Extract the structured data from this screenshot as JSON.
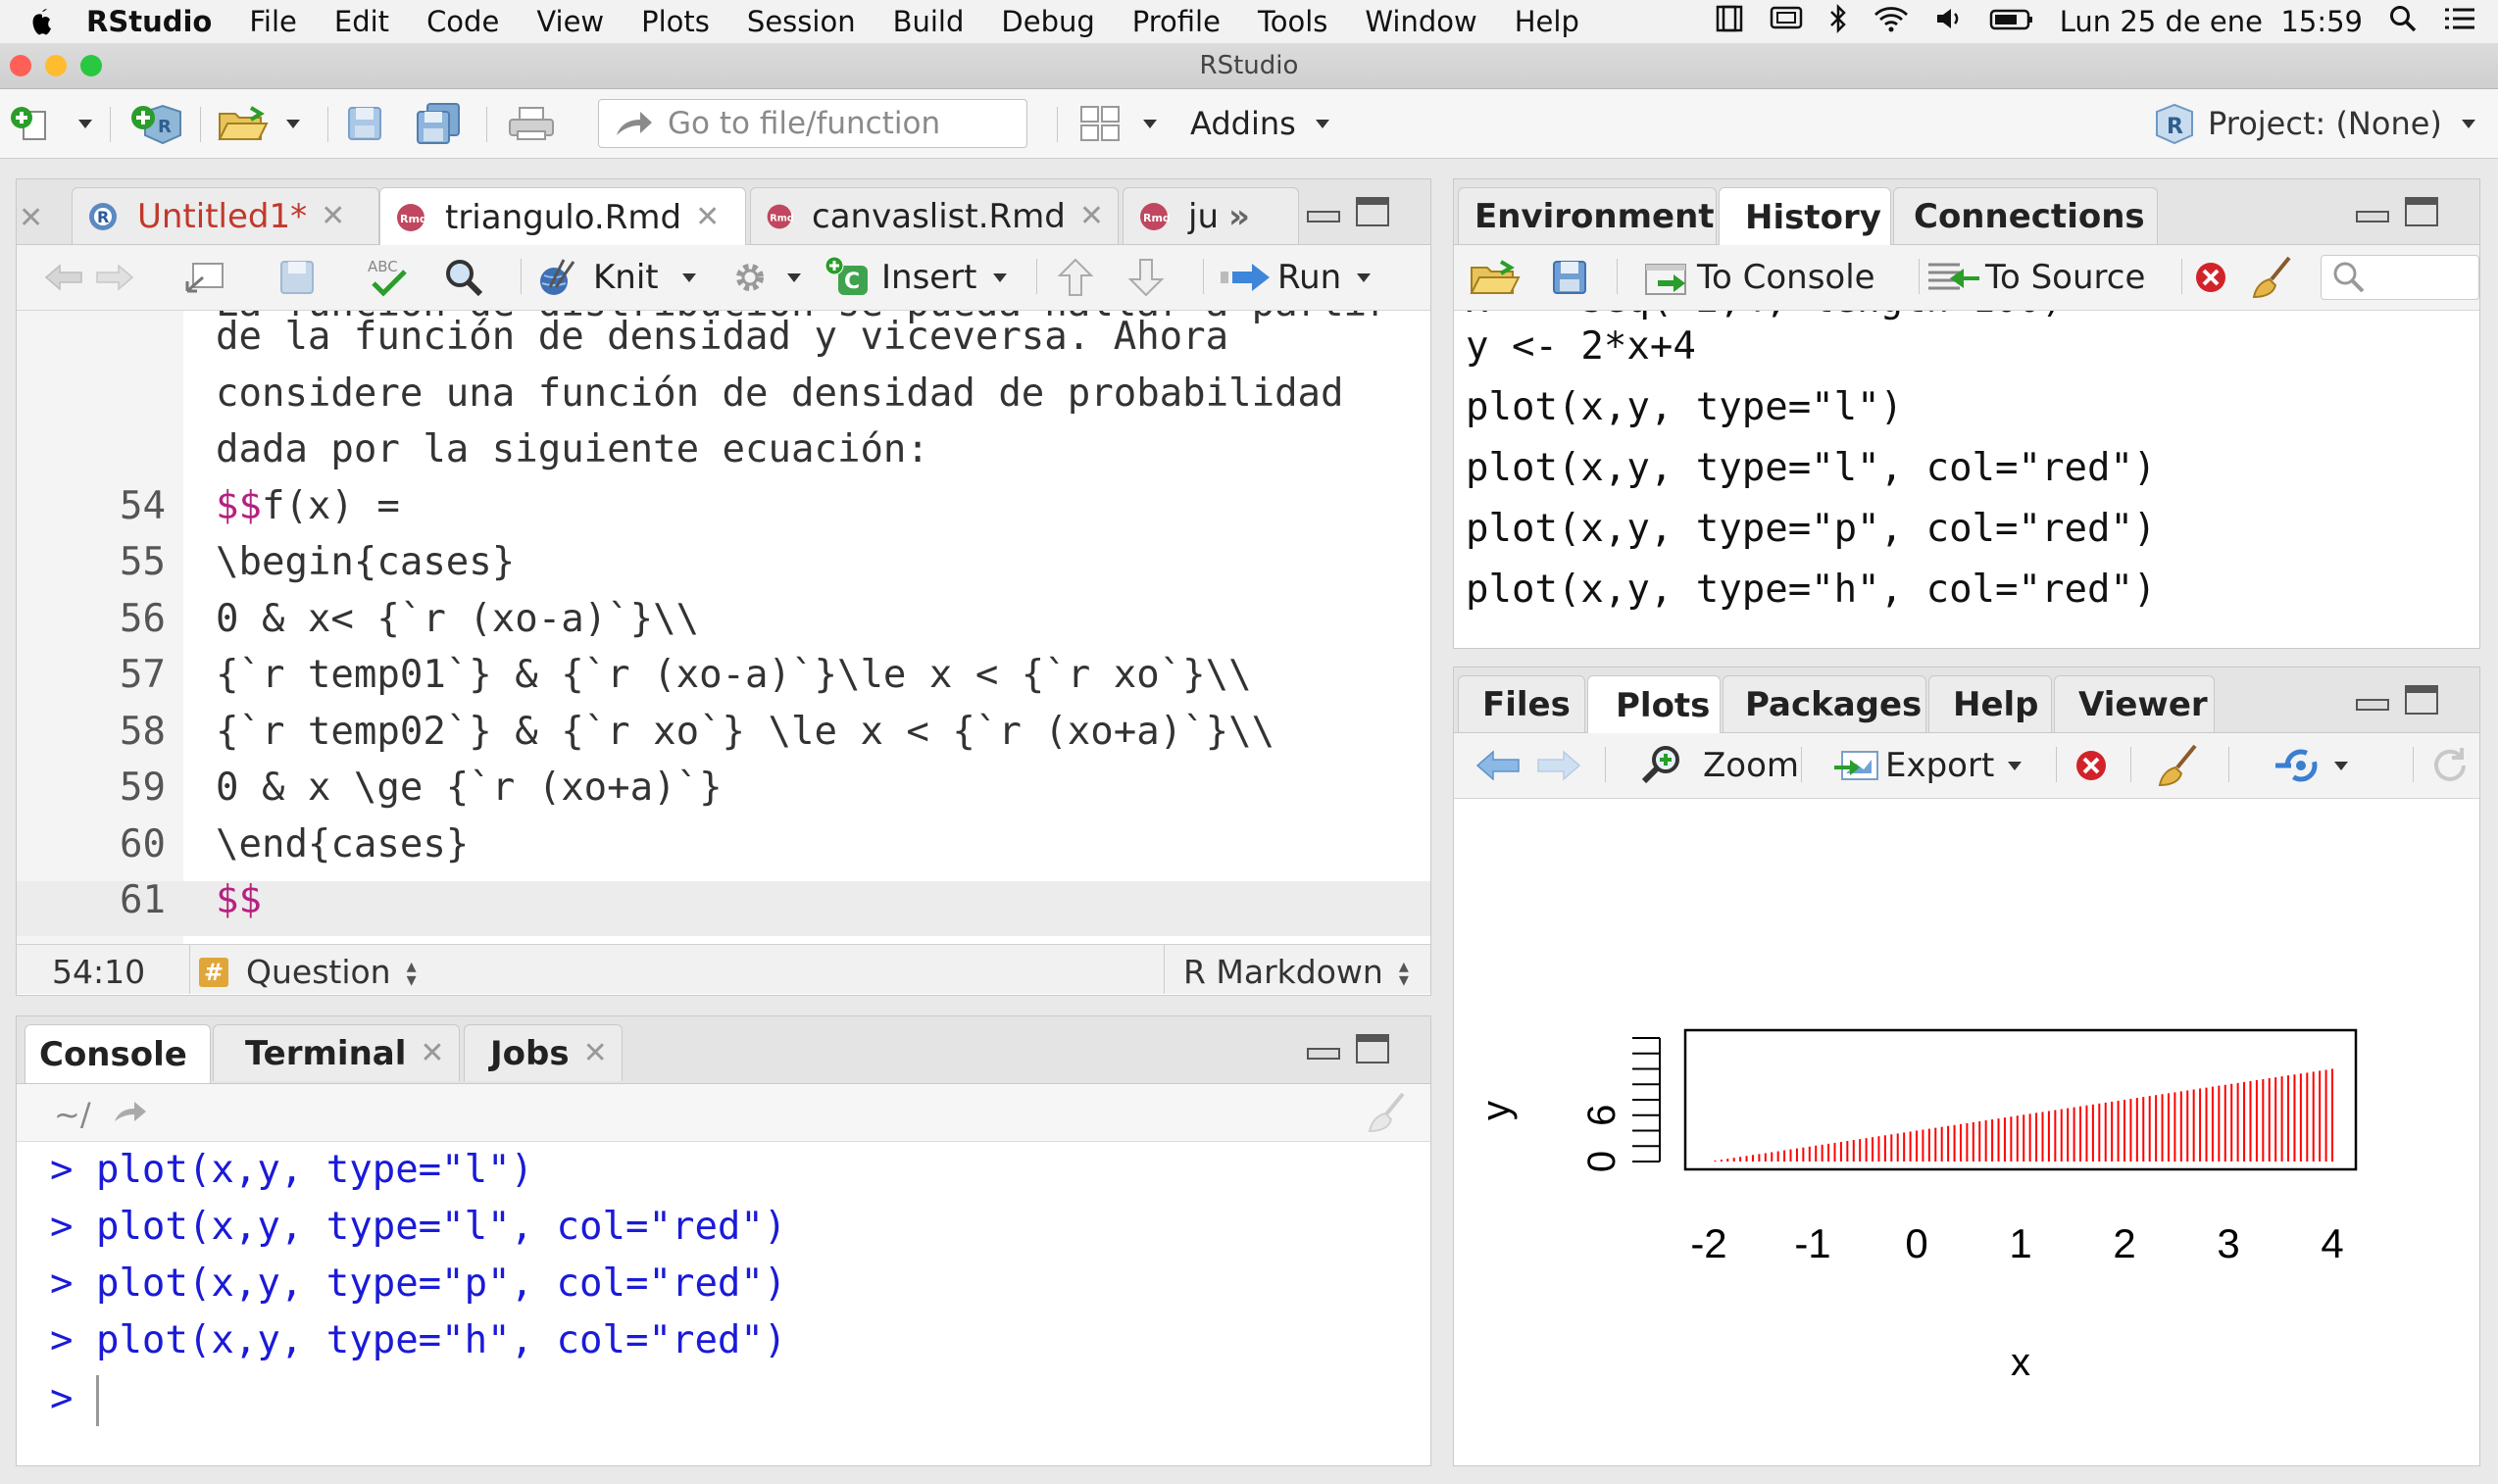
{
  "menubar": {
    "app": "RStudio",
    "items": [
      "File",
      "Edit",
      "Code",
      "View",
      "Plots",
      "Session",
      "Build",
      "Debug",
      "Profile",
      "Tools",
      "Window",
      "Help"
    ],
    "clock": "Lun 25 de ene  15:59"
  },
  "window": {
    "title": "RStudio"
  },
  "toolbar": {
    "goto_placeholder": "Go to file/function",
    "addins": "Addins",
    "project": "Project: (None)"
  },
  "editor": {
    "tabs": [
      {
        "label": "Untitled1*",
        "modified": true
      },
      {
        "label": "triangulo.Rmd"
      },
      {
        "label": "canvaslist.Rmd"
      },
      {
        "label": "ju"
      }
    ],
    "knit": "Knit",
    "insert": "Insert",
    "run": "Run",
    "lines": [
      {
        "num": "",
        "text": "de la función de densidad y viceversa. Ahora"
      },
      {
        "num": "",
        "text": "considere una función de densidad de probabilidad"
      },
      {
        "num": "",
        "text": "dada por la siguiente ecuación:"
      },
      {
        "num": "54",
        "pre": "$$",
        "text": "f(x) ="
      },
      {
        "num": "55",
        "text": "\\begin{cases}"
      },
      {
        "num": "56",
        "text": "0 & x< {`r (xo-a)`}\\\\"
      },
      {
        "num": "57",
        "text": "{`r temp01`} & {`r (xo-a)`}\\le x < {`r xo`}\\\\"
      },
      {
        "num": "58",
        "text": "{`r temp02`} & {`r xo`} \\le x < {`r (xo+a)`}\\\\"
      },
      {
        "num": "59",
        "text": "0 & x \\ge {`r (xo+a)`}"
      },
      {
        "num": "60",
        "text": "\\end{cases}"
      },
      {
        "num": "61",
        "pre": "$$",
        "text": ""
      }
    ],
    "status": {
      "position": "54:10",
      "section": "Question",
      "mode": "R Markdown"
    }
  },
  "console": {
    "tabs": [
      "Console",
      "Terminal",
      "Jobs"
    ],
    "path": "~/",
    "lines": [
      "> plot(x,y, type=\"l\")",
      "> plot(x,y, type=\"l\", col=\"red\")",
      "> plot(x,y, type=\"p\", col=\"red\")",
      "> plot(x,y, type=\"h\", col=\"red\")"
    ],
    "prompt": ">"
  },
  "envpane": {
    "tabs": [
      "Environment",
      "History",
      "Connections"
    ],
    "to_console": "To Console",
    "to_source": "To Source",
    "history": [
      "y <- 2*x+4",
      "plot(x,y, type=\"l\")",
      "plot(x,y, type=\"l\", col=\"red\")",
      "plot(x,y, type=\"p\", col=\"red\")",
      "plot(x,y, type=\"h\", col=\"red\")"
    ]
  },
  "filespane": {
    "tabs": [
      "Files",
      "Plots",
      "Packages",
      "Help",
      "Viewer"
    ],
    "zoom": "Zoom",
    "export": "Export"
  },
  "chart_data": {
    "type": "bar",
    "plot_type": "h",
    "series_color": "#ff0000",
    "x_from": -2,
    "x_to": 4,
    "n_points": 100,
    "y_formula": "2*x+4",
    "xlim": [
      -2,
      4
    ],
    "ylim": [
      0,
      16
    ],
    "xticks": [
      "-2",
      "-1",
      "0",
      "1",
      "2",
      "3",
      "4"
    ],
    "yticks": [
      "0",
      "6"
    ],
    "xlabel": "x",
    "ylabel": "y"
  },
  "colors": {
    "tab_modified": "#c0392b",
    "markdown_magenta": "#b5227f",
    "console_blue": "#1a1ad8"
  }
}
